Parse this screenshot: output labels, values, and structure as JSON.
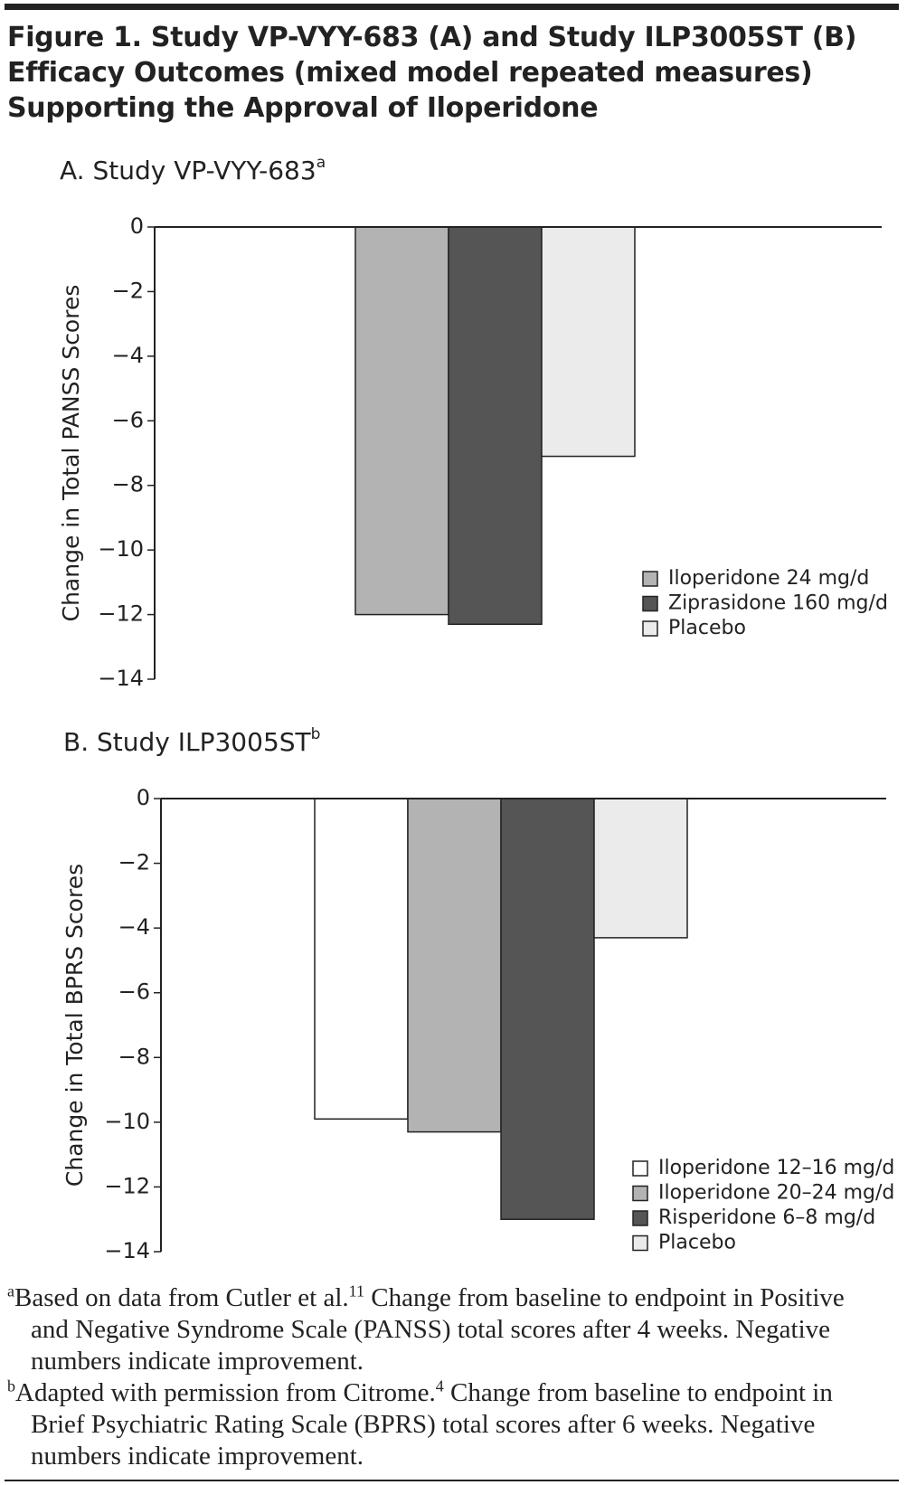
{
  "figure_title_lines": [
    "Figure 1. Study VP-VYY-683 (A) and Study ILP3005ST (B)",
    "Efficacy Outcomes (mixed model repeated measures)",
    "Supporting the Approval of Iloperidone"
  ],
  "chart_data": [
    {
      "type": "bar",
      "title": "A. Study VP-VYY-683",
      "title_note": "a",
      "y_label": "Change in Total PANSS Scores",
      "categories": [
        null
      ],
      "series": [
        {
          "name": "Iloperidone 24 mg/d",
          "color": "#b3b3b3",
          "values": [
            -12.0
          ]
        },
        {
          "name": "Ziprasidone 160 mg/d",
          "color": "#555555",
          "values": [
            -12.3
          ]
        },
        {
          "name": "Placebo",
          "color": "#ebebeb",
          "values": [
            -7.1
          ]
        }
      ],
      "ylim": [
        -14,
        0
      ],
      "yticks": [
        0,
        {
          "value": -2,
          "label": "−2"
        },
        {
          "value": -4,
          "label": "−4"
        },
        {
          "value": -6,
          "label": "−6"
        },
        {
          "value": -8,
          "label": "−8"
        },
        {
          "value": -10,
          "label": "−10"
        },
        {
          "value": -12,
          "label": "−12"
        },
        {
          "value": -14,
          "label": "−14"
        }
      ],
      "grid": false,
      "legend": "lower right"
    },
    {
      "type": "bar",
      "title": "B. Study ILP3005ST",
      "title_note": "b",
      "y_label": "Change in Total BPRS Scores",
      "categories": [
        null
      ],
      "series": [
        {
          "name": "Iloperidone 12–16 mg/d",
          "color": "#ffffff",
          "values": [
            -9.9
          ]
        },
        {
          "name": "Iloperidone 20–24 mg/d",
          "color": "#b3b3b3",
          "values": [
            -10.3
          ]
        },
        {
          "name": "Risperidone 6–8 mg/d",
          "color": "#555555",
          "values": [
            -13.0
          ]
        },
        {
          "name": "Placebo",
          "color": "#ebebeb",
          "values": [
            -4.3
          ]
        }
      ],
      "ylim": [
        -14,
        0
      ],
      "yticks": [
        0,
        {
          "value": -2,
          "label": "−2"
        },
        {
          "value": -4,
          "label": "−4"
        },
        {
          "value": -6,
          "label": "−6"
        },
        {
          "value": -8,
          "label": "−8"
        },
        {
          "value": -10,
          "label": "−10"
        },
        {
          "value": -12,
          "label": "−12"
        },
        {
          "value": -14,
          "label": "−14"
        }
      ],
      "grid": false,
      "legend": "lower right"
    }
  ],
  "footnotes": [
    {
      "marker": "a",
      "text": "Based on data from Cutler et al.",
      "ref": "11",
      "rest": "Change from baseline to endpoint in Positive and Negative Syndrome Scale (PANSS) total scores after 4 weeks. Negative numbers indicate improvement."
    },
    {
      "marker": "b",
      "text": "Adapted with permission from Citrome.",
      "ref": "4",
      "rest": "Change from baseline to endpoint in Brief Psychiatric Rating Scale (BPRS) total scores after 6 weeks. Negative numbers indicate improvement."
    }
  ]
}
